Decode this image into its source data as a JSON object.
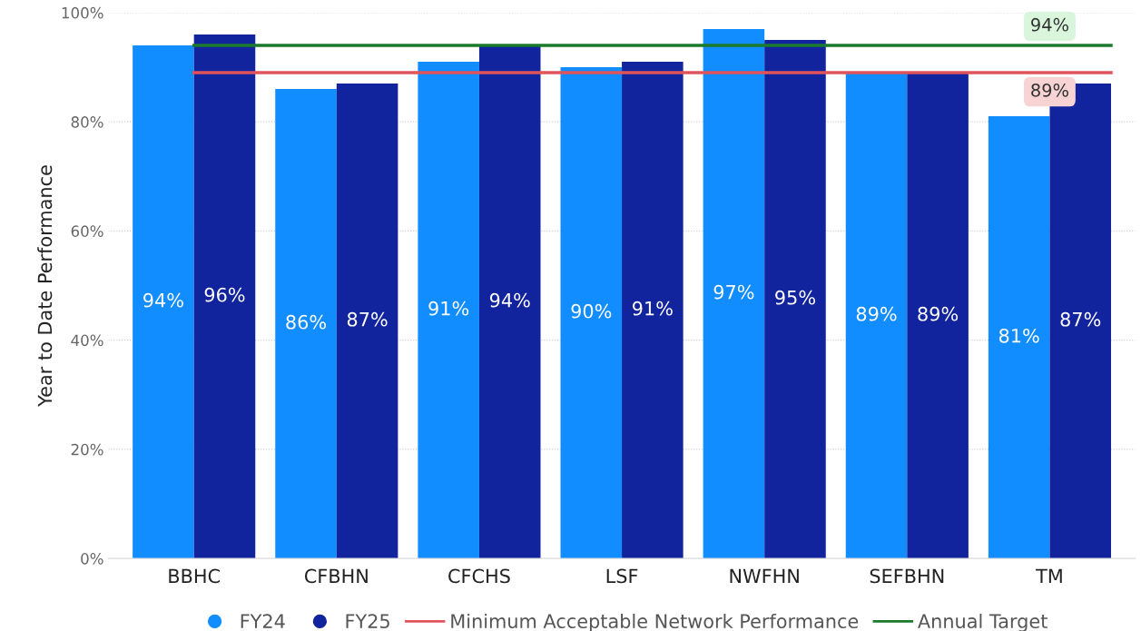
{
  "chart_data": {
    "type": "bar",
    "ylabel": "Year to Date Performance",
    "categories": [
      "BBHC",
      "CFBHN",
      "CFCHS",
      "LSF",
      "NWFHN",
      "SEFBHN",
      "TM"
    ],
    "series": [
      {
        "name": "FY24",
        "color": "#118dff",
        "values": [
          94,
          86,
          91,
          90,
          97,
          89,
          81
        ],
        "value_labels": [
          "94%",
          "86%",
          "91%",
          "90%",
          "97%",
          "89%",
          "81%"
        ]
      },
      {
        "name": "FY25",
        "color": "#12239e",
        "values": [
          96,
          87,
          94,
          91,
          95,
          89,
          87
        ],
        "value_labels": [
          "96%",
          "87%",
          "94%",
          "91%",
          "95%",
          "89%",
          "87%"
        ]
      }
    ],
    "ylim": [
      0,
      100
    ],
    "yticks": [
      {
        "value": 0,
        "label": "0%"
      },
      {
        "value": 20,
        "label": "20%"
      },
      {
        "value": 40,
        "label": "40%"
      },
      {
        "value": 60,
        "label": "60%"
      },
      {
        "value": 80,
        "label": "80%"
      },
      {
        "value": 100,
        "label": "100%"
      }
    ],
    "ref_lines": [
      {
        "axis": "y",
        "value": 89,
        "label": "Minimum Acceptable Network Performance",
        "color": "#e0545b"
      },
      {
        "axis": "y",
        "value": 94,
        "label": "Annual Target",
        "color": "#1b7a2c"
      }
    ],
    "annotations": [
      {
        "text": "94%",
        "x": "TM",
        "y": 94
      },
      {
        "text": "89%",
        "x": "TM",
        "y": 89
      }
    ],
    "grid": "y",
    "legend": "bottom"
  }
}
